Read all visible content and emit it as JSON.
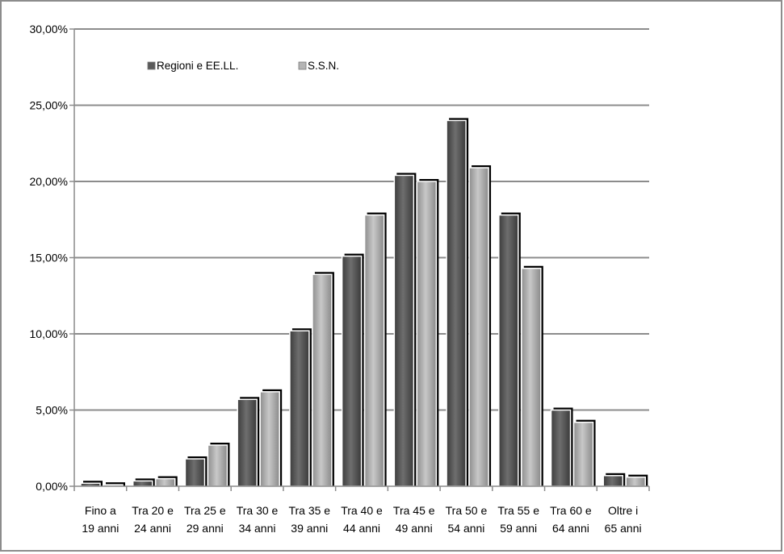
{
  "chart_data": {
    "type": "bar",
    "categories": [
      [
        "Fino a",
        "19 anni"
      ],
      [
        "Tra 20 e",
        "24 anni"
      ],
      [
        "Tra 25 e",
        "29 anni"
      ],
      [
        "Tra 30 e",
        "34 anni"
      ],
      [
        "Tra 35 e",
        "39 anni"
      ],
      [
        "Tra 40 e",
        "44 anni"
      ],
      [
        "Tra 45 e",
        "49 anni"
      ],
      [
        "Tra 50 e",
        "54 anni"
      ],
      [
        "Tra 55 e",
        "59 anni"
      ],
      [
        "Tra 60 e",
        "64 anni"
      ],
      [
        "Oltre i",
        "65 anni"
      ]
    ],
    "series": [
      {
        "name": "Regioni e EE.LL.",
        "color": "#5a5a5a",
        "values": [
          0.2,
          0.35,
          1.8,
          5.7,
          10.2,
          15.1,
          20.4,
          24.0,
          17.8,
          5.0,
          0.7
        ]
      },
      {
        "name": "S.S.N.",
        "color": "#b4b4b4",
        "values": [
          0.1,
          0.5,
          2.7,
          6.2,
          13.9,
          17.8,
          20.0,
          20.9,
          14.3,
          4.2,
          0.6
        ]
      }
    ],
    "yticks": [
      "0,00%",
      "5,00%",
      "10,00%",
      "15,00%",
      "20,00%",
      "25,00%",
      "30,00%"
    ],
    "ylim": [
      0,
      30
    ],
    "grid": true,
    "legend_position": "top-left",
    "title": "",
    "xlabel": "",
    "ylabel": ""
  }
}
